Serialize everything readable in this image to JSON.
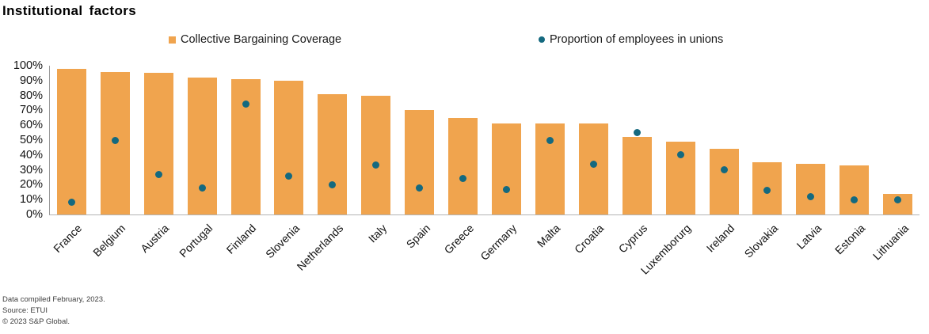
{
  "title": "Institutional factors",
  "legend": {
    "items": [
      {
        "label": "Collective Bargaining Coverage",
        "marker": "square",
        "color": "#F0A44E"
      },
      {
        "label": "Proportion of employees in unions",
        "marker": "circle",
        "color": "#14697F"
      }
    ]
  },
  "footer": {
    "line1": "Data compiled February, 2023.",
    "line2": "Source: ETUI",
    "line3": "© 2023 S&P Global."
  },
  "colors": {
    "bar": "#F0A44E",
    "dot": "#14697F",
    "axis": "#9b9b9b",
    "text": "#111111"
  },
  "chart_data": {
    "type": "bar",
    "title": "Institutional factors",
    "categories": [
      "France",
      "Belgium",
      "Austria",
      "Portugal",
      "Finland",
      "Slovenia",
      "Netherlands",
      "Italy",
      "Spain",
      "Greece",
      "Germany",
      "Malta",
      "Croatia",
      "Cyprus",
      "Luxemborurg",
      "Ireland",
      "Slovakia",
      "Latvia",
      "Estonia",
      "Lithuania"
    ],
    "series": [
      {
        "name": "Collective Bargaining Coverage",
        "type": "bar",
        "color": "#F0A44E",
        "values": [
          98,
          96,
          95,
          92,
          91,
          90,
          81,
          80,
          70,
          65,
          61,
          61,
          61,
          52,
          49,
          44,
          35,
          34,
          33,
          14
        ]
      },
      {
        "name": "Proportion of employees in unions",
        "type": "scatter",
        "color": "#14697F",
        "values": [
          8,
          50,
          27,
          18,
          74,
          26,
          20,
          33,
          18,
          24,
          17,
          50,
          34,
          55,
          40,
          30,
          16,
          12,
          10,
          10
        ]
      }
    ],
    "xlabel": "",
    "ylabel": "",
    "ylim": [
      0,
      100
    ],
    "yticks": [
      "0%",
      "10%",
      "20%",
      "30%",
      "40%",
      "50%",
      "60%",
      "70%",
      "80%",
      "90%",
      "100%"
    ],
    "grid": false,
    "legend_position": "top"
  }
}
